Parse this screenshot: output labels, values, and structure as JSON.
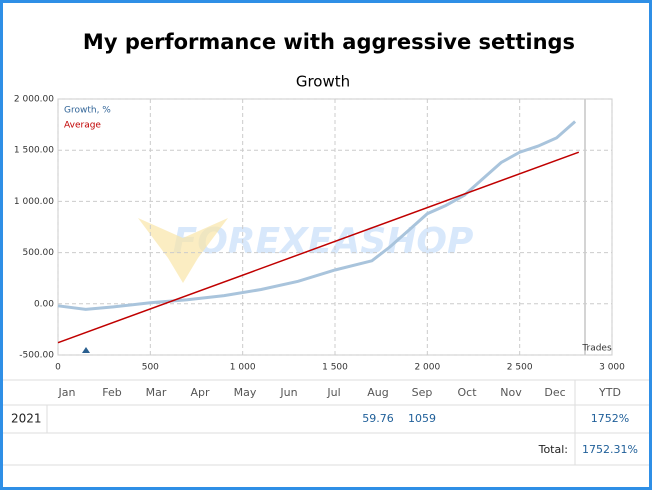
{
  "heading": "My performance with aggressive settings",
  "chart_data": {
    "type": "line",
    "title": "Growth",
    "x_label": "Trades",
    "watermark": "FOREXEASHOP",
    "xlim": [
      0,
      3000
    ],
    "xticks": [
      0,
      500,
      {
        "value": 1000,
        "label": "1 000"
      },
      {
        "value": 1500,
        "label": "1 500"
      },
      {
        "value": 2000,
        "label": "2 000"
      },
      {
        "value": 2500,
        "label": "2 500"
      },
      {
        "value": 3000,
        "label": "3 000"
      }
    ],
    "ylim": [
      -500,
      2000
    ],
    "yticks": [
      {
        "value": -500,
        "label": "-500.00"
      },
      {
        "value": 0,
        "label": "0.00"
      },
      {
        "value": 500,
        "label": "500.00"
      },
      {
        "value": 1000,
        "label": "1 000.00"
      },
      {
        "value": 1500,
        "label": "1 500.00"
      },
      {
        "value": 2000,
        "label": "2 000.00"
      }
    ],
    "grid": true,
    "legend": "upper left",
    "series": [
      {
        "name": "Growth, %",
        "color": "#a9c4dc",
        "legend_color": "#336699",
        "x": [
          0,
          150,
          300,
          500,
          700,
          900,
          1100,
          1300,
          1500,
          1700,
          1800,
          1900,
          2000,
          2100,
          2200,
          2300,
          2400,
          2500,
          2600,
          2700,
          2800
        ],
        "values": [
          -20,
          -55,
          -30,
          10,
          40,
          80,
          140,
          220,
          330,
          420,
          560,
          720,
          880,
          960,
          1060,
          1220,
          1380,
          1480,
          1540,
          1620,
          1780
        ]
      },
      {
        "name": "Average",
        "color": "#c00000",
        "legend_color": "#c00000",
        "x": [
          0,
          2820
        ],
        "values": [
          -380,
          1480
        ]
      }
    ]
  },
  "table": {
    "header": [
      "Jan",
      "Feb",
      "Mar",
      "Apr",
      "May",
      "Jun",
      "Jul",
      "Aug",
      "Sep",
      "Oct",
      "Nov",
      "Dec",
      "YTD"
    ],
    "rows": [
      {
        "year": "2021",
        "cells": [
          null,
          null,
          null,
          null,
          null,
          null,
          null,
          59.76,
          1059,
          null,
          null,
          null,
          "1752%"
        ]
      }
    ],
    "total_label": "Total:",
    "total": "1752.31%"
  }
}
